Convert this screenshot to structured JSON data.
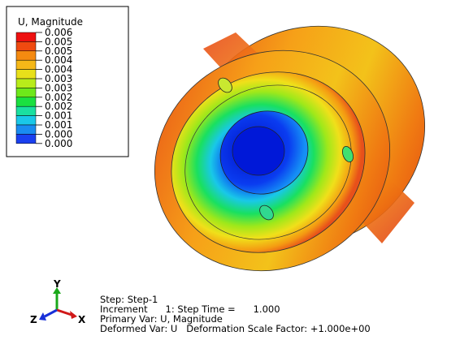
{
  "legend": {
    "title": "U, Magnitude",
    "labels": [
      "0.006",
      "0.005",
      "0.005",
      "0.004",
      "0.004",
      "0.003",
      "0.003",
      "0.002",
      "0.002",
      "0.001",
      "0.001",
      "0.000",
      "0.000"
    ]
  },
  "triad": {
    "y": "Y",
    "x": "X",
    "z": "Z"
  },
  "info": {
    "lines": [
      "Step: Step-1",
      "Increment      1: Step Time =      1.000",
      "Primary Var: U, Magnitude",
      "Deformed Var: U   Deformation Scale Factor: +1.000e+00"
    ]
  }
}
